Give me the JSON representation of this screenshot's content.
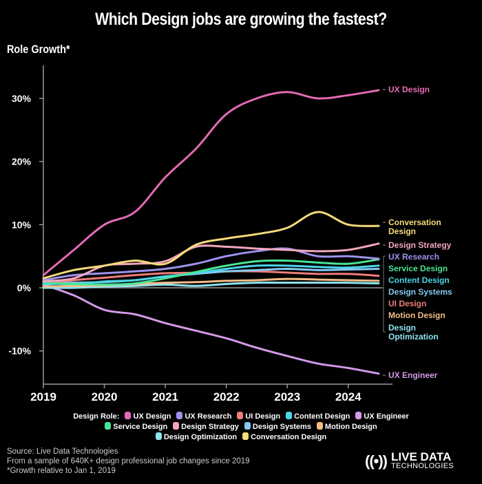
{
  "title": "Which Design jobs are growing the fastest?",
  "y_axis_label": "Role Growth*",
  "legend": {
    "label": "Design Role:",
    "rows": [
      [
        "UX Design",
        "UX Research",
        "UI Design",
        "Content Design",
        "UX Engineer"
      ],
      [
        "Service Design",
        "Design Strategy",
        "Design Systems",
        "Motion Design"
      ],
      [
        "Design Optimization",
        "Conversation Design"
      ]
    ]
  },
  "footer": {
    "source": "Source: Live Data Technologies",
    "sample": "From a sample of 640K+ design professional job changes since 2019",
    "note": "*Growth relative to Jan 1, 2019"
  },
  "logo": {
    "icon": "((•))",
    "main": "LIVE DATA",
    "sub": "TECHNOLOGIES"
  },
  "chart_data": {
    "type": "line",
    "title": "Which Design jobs are growing the fastest?",
    "xlabel": "",
    "ylabel": "Role Growth*",
    "x": [
      2019,
      2019.5,
      2020,
      2020.5,
      2021,
      2021.5,
      2022,
      2022.5,
      2023,
      2023.5,
      2024,
      2024.5
    ],
    "xlim": [
      2019,
      2024.5
    ],
    "ylim": [
      -15,
      35
    ],
    "x_ticks": [
      "2019",
      "2020",
      "2021",
      "2022",
      "2023",
      "2024"
    ],
    "x_tick_values": [
      2019,
      2020,
      2021,
      2022,
      2023,
      2024
    ],
    "y_ticks": [
      "-10%",
      "0%",
      "10%",
      "20%",
      "30%"
    ],
    "y_tick_values": [
      -10,
      0,
      10,
      20,
      30
    ],
    "grid": false,
    "legend_position": "bottom",
    "series": [
      {
        "name": "UX Design",
        "color": "#e36bb5",
        "end_label": [
          "UX Design"
        ],
        "values": [
          2.0,
          6.0,
          10.0,
          12.0,
          17.5,
          22.0,
          27.5,
          30.0,
          31.0,
          30.0,
          30.5,
          31.3
        ]
      },
      {
        "name": "Conversation Design",
        "color": "#f7dc7a",
        "end_label": [
          "Conversation",
          "Design"
        ],
        "values": [
          1.5,
          2.8,
          3.5,
          4.3,
          3.8,
          6.8,
          7.8,
          8.5,
          9.5,
          12.0,
          10.0,
          9.8
        ]
      },
      {
        "name": "Design Strategy",
        "color": "#f2a6bd",
        "end_label": [
          "Design Strategy"
        ],
        "values": [
          1.0,
          1.5,
          3.5,
          3.8,
          4.2,
          6.5,
          6.5,
          6.2,
          6.0,
          5.8,
          6.0,
          7.0
        ]
      },
      {
        "name": "UX Research",
        "color": "#9f92ee",
        "end_label": [
          "UX Research"
        ],
        "values": [
          1.2,
          2.0,
          2.3,
          2.6,
          3.0,
          3.8,
          5.0,
          5.8,
          6.2,
          5.0,
          5.0,
          4.6
        ]
      },
      {
        "name": "Service Design",
        "color": "#49e596",
        "end_label": [
          "Service Design"
        ],
        "values": [
          0.8,
          0.6,
          0.5,
          0.7,
          1.5,
          2.5,
          3.5,
          4.2,
          4.3,
          4.0,
          3.8,
          4.5
        ]
      },
      {
        "name": "Content Design",
        "color": "#49d6e6",
        "end_label": [
          "Content Design"
        ],
        "values": [
          0.7,
          0.6,
          1.0,
          1.2,
          1.8,
          2.3,
          3.0,
          3.5,
          3.5,
          3.3,
          3.2,
          3.5
        ]
      },
      {
        "name": "Design Systems",
        "color": "#86c9f2",
        "end_label": [
          "Design Systems"
        ],
        "values": [
          0.5,
          0.8,
          0.9,
          1.2,
          1.8,
          2.2,
          2.6,
          2.8,
          3.0,
          2.8,
          2.9,
          3.0
        ]
      },
      {
        "name": "UI Design",
        "color": "#ee7d7a",
        "end_label": [
          "UI Design"
        ],
        "values": [
          0.5,
          1.2,
          1.6,
          2.0,
          2.3,
          2.4,
          2.6,
          2.6,
          2.4,
          2.2,
          2.2,
          1.9
        ]
      },
      {
        "name": "Motion Design",
        "color": "#f4bd88",
        "end_label": [
          "Motion Design"
        ],
        "values": [
          0.2,
          0.3,
          0.4,
          0.6,
          0.8,
          0.9,
          1.1,
          1.2,
          1.4,
          1.3,
          1.2,
          1.1
        ]
      },
      {
        "name": "Design Optimization",
        "color": "#8fe4f0",
        "end_label": [
          "Design",
          "Optimization"
        ],
        "values": [
          0.0,
          0.0,
          0.2,
          0.3,
          0.5,
          0.3,
          0.6,
          0.8,
          0.8,
          0.8,
          0.8,
          0.7
        ]
      },
      {
        "name": "UX Engineer",
        "color": "#d59ae8",
        "end_label": [
          "UX Engineer"
        ],
        "values": [
          0.5,
          -1.2,
          -3.5,
          -4.2,
          -5.6,
          -6.8,
          -8.0,
          -9.5,
          -10.8,
          -12.0,
          -12.7,
          -13.6
        ]
      }
    ]
  }
}
